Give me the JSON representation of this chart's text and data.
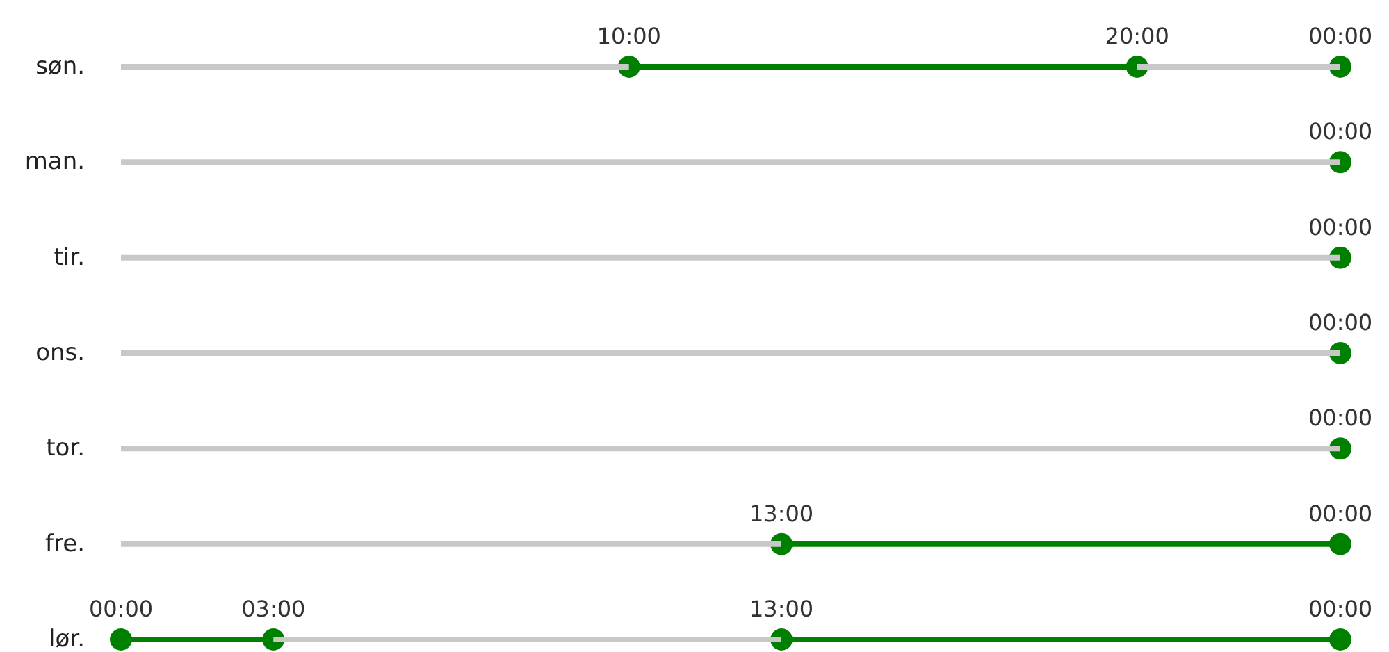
{
  "chart_data": {
    "type": "bar",
    "orientation": "horizontal",
    "stacked": true,
    "categories": [
      "søn.",
      "man.",
      "tir.",
      "ons.",
      "tor.",
      "fre.",
      "lør."
    ],
    "tick_labels": "y",
    "marker": "circle",
    "series": [
      {
        "color": "#c8c8c8",
        "values": [
          10,
          24,
          24,
          24,
          24,
          13,
          null
        ]
      },
      {
        "color": "#008000",
        "values": [
          10,
          null,
          null,
          null,
          null,
          11,
          3
        ]
      },
      {
        "color": "#c8c8c8",
        "values": [
          4,
          null,
          null,
          null,
          null,
          null,
          10
        ]
      },
      {
        "color": "#008000",
        "values": [
          null,
          null,
          null,
          null,
          null,
          null,
          11
        ]
      },
      {
        "type": "scatter",
        "color": "#008000",
        "values": [
          10,
          null,
          null,
          null,
          null,
          13,
          0
        ],
        "value_labels": [
          "10:00",
          null,
          null,
          null,
          null,
          "13:00",
          "00:00"
        ]
      },
      {
        "type": "scatter",
        "color": "#008000",
        "values": [
          20,
          null,
          null,
          null,
          null,
          null,
          3
        ],
        "value_labels": [
          "20:00",
          null,
          null,
          null,
          null,
          null,
          "03:00"
        ]
      },
      {
        "type": "scatter",
        "color": "#008000",
        "values": [
          null,
          null,
          null,
          null,
          null,
          null,
          13
        ],
        "value_labels": [
          null,
          null,
          null,
          null,
          null,
          null,
          "13:00"
        ]
      },
      {
        "type": "scatter",
        "color": "#008000",
        "values": [
          24,
          24,
          24,
          24,
          24,
          24,
          24
        ],
        "value_labels": [
          "00:00",
          "00:00",
          "00:00",
          "00:00",
          "00:00",
          "00:00",
          "00:00"
        ]
      }
    ]
  }
}
